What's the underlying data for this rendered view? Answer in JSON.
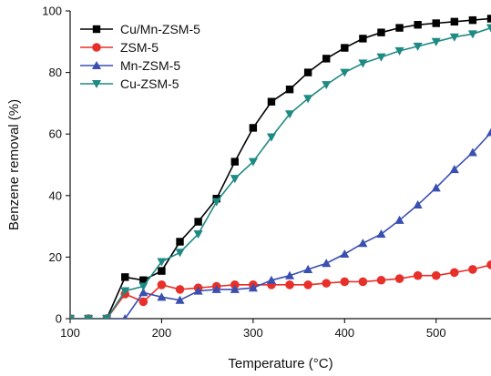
{
  "chart_data": {
    "type": "line",
    "xlabel": "Temperature (°C)",
    "ylabel": "Benzene removal (%)",
    "xlim": [
      100,
      560
    ],
    "ylim": [
      0,
      100
    ],
    "x_ticks": [
      100,
      200,
      300,
      400,
      500
    ],
    "y_ticks": [
      0,
      20,
      40,
      60,
      80,
      100
    ],
    "grid": false,
    "legend_position": "top-left",
    "series": [
      {
        "name": "Cu/Mn-ZSM-5",
        "color": "#000000",
        "marker": "square",
        "x": [
          80,
          100,
          120,
          140,
          160,
          180,
          200,
          220,
          240,
          260,
          280,
          300,
          320,
          340,
          360,
          380,
          400,
          420,
          440,
          460,
          480,
          500,
          520,
          540,
          560
        ],
        "y": [
          0,
          0,
          0,
          0,
          13.5,
          12.5,
          15.5,
          25,
          31.5,
          39,
          51,
          62,
          70.5,
          74.5,
          80,
          84.5,
          88,
          91,
          93,
          94.5,
          95.5,
          96,
          96.5,
          97,
          97.5
        ]
      },
      {
        "name": "ZSM-5",
        "color": "#e8302a",
        "marker": "circle",
        "x": [
          80,
          100,
          120,
          140,
          160,
          180,
          200,
          220,
          240,
          260,
          280,
          300,
          320,
          340,
          360,
          380,
          400,
          420,
          440,
          460,
          480,
          500,
          520,
          540,
          560
        ],
        "y": [
          0,
          0,
          0,
          0,
          8,
          5.5,
          11,
          9.5,
          10,
          10.5,
          11,
          11,
          11,
          11,
          11,
          11.5,
          12,
          12,
          12.5,
          13,
          14,
          14,
          15,
          16,
          17.5
        ]
      },
      {
        "name": "Mn-ZSM-5",
        "color": "#3a4fb0",
        "marker": "triangle-up",
        "x": [
          80,
          100,
          120,
          140,
          160,
          180,
          200,
          220,
          240,
          260,
          280,
          300,
          320,
          340,
          360,
          380,
          400,
          420,
          440,
          460,
          480,
          500,
          520,
          540,
          560
        ],
        "y": [
          0,
          0,
          0,
          0,
          0,
          8.5,
          7,
          6,
          9,
          9.5,
          9.5,
          10,
          12.5,
          14,
          16,
          18,
          21,
          24.5,
          27.5,
          32,
          37,
          42.5,
          48.5,
          54,
          60.5
        ]
      },
      {
        "name": "Cu-ZSM-5",
        "color": "#1f8a84",
        "marker": "triangle-down",
        "x": [
          80,
          100,
          120,
          140,
          160,
          180,
          200,
          220,
          240,
          260,
          280,
          300,
          320,
          340,
          360,
          380,
          400,
          420,
          440,
          460,
          480,
          500,
          520,
          540,
          560
        ],
        "y": [
          0,
          0,
          0,
          0,
          9,
          10.5,
          18.5,
          21.5,
          27.5,
          38,
          45.5,
          51,
          59,
          66.5,
          71.5,
          76,
          80,
          83,
          85,
          87,
          88.5,
          90,
          91.5,
          92.5,
          94.5
        ]
      }
    ]
  }
}
